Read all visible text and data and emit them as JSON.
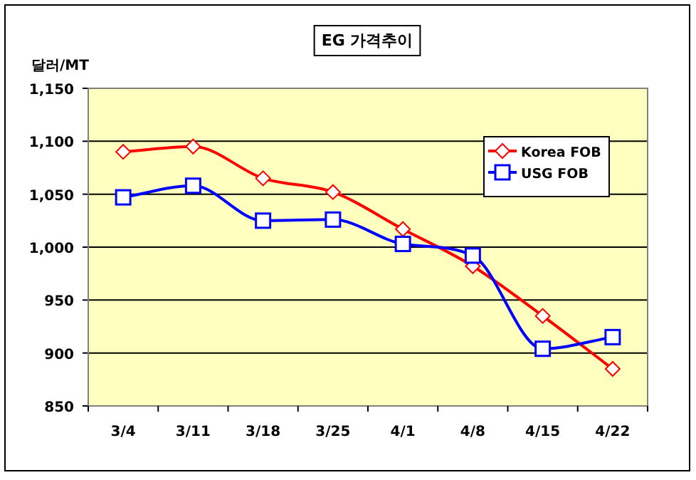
{
  "chart_data": {
    "type": "line",
    "title": "EG 가격추이",
    "ylabel": "달러/MT",
    "categories": [
      "3/4",
      "3/11",
      "3/18",
      "3/25",
      "4/1",
      "4/8",
      "4/15",
      "4/22"
    ],
    "series": [
      {
        "name": "Korea FOB",
        "color": "#ff0000",
        "marker": "diamond",
        "values": [
          1090,
          1095,
          1065,
          1052,
          1017,
          982,
          935,
          885
        ]
      },
      {
        "name": "USG FOB",
        "color": "#0000ff",
        "marker": "square",
        "values": [
          1047,
          1058,
          1025,
          1026,
          1003,
          992,
          904,
          915
        ]
      }
    ],
    "ylim": [
      850,
      1150
    ],
    "yticks": [
      {
        "value": 850,
        "label": "850"
      },
      {
        "value": 900,
        "label": "900"
      },
      {
        "value": 950,
        "label": "950"
      },
      {
        "value": 1000,
        "label": "1,000"
      },
      {
        "value": 1050,
        "label": "1,050"
      },
      {
        "value": 1100,
        "label": "1,100"
      },
      {
        "value": 1150,
        "label": "1,150"
      }
    ],
    "grid": "y",
    "legend": "top right",
    "line_style": "solid"
  }
}
